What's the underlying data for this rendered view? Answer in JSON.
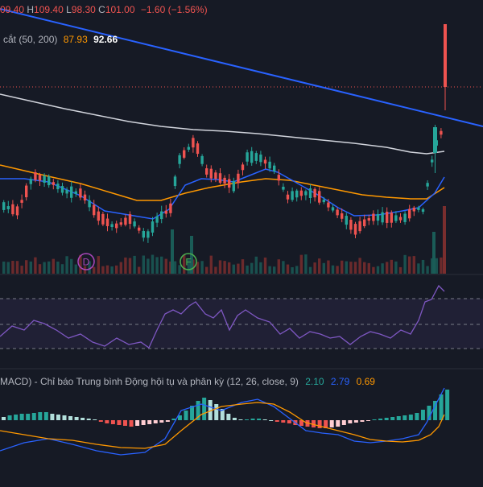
{
  "ohlc_bar": {
    "open_fragment": "09.40",
    "high_label": "H",
    "high": "109.40",
    "low_label": "L",
    "low": "98.30",
    "close_label": "C",
    "close": "101.00",
    "change": "−1.60 (−1.56%)"
  },
  "ma_legend": {
    "text": "cắt (50, 200)",
    "value1": "87.93",
    "value2": "92.66"
  },
  "markers": {
    "d": "D",
    "f": "F"
  },
  "macd_legend": {
    "text": "MACD) - Chỉ báo Trung bình Động hội tụ và phân kỳ (12, 26, close, 9)",
    "hist": "2.10",
    "macd": "2.79",
    "signal": "0.69"
  },
  "colors": {
    "background": "#161a25",
    "up": "#26a69a",
    "down": "#ef5350",
    "ma_fast": "#2962ff",
    "ma_slow": "#ff9800",
    "ma_200": "#d1d4dc",
    "trendline": "#2962ff",
    "rsi": "#7e57c2",
    "macd_line": "#2962ff",
    "signal_line": "#ff9800",
    "hist_up_strong": "#26a69a",
    "hist_up_weak": "#b2dfdb",
    "hist_down_strong": "#ef5350",
    "hist_down_weak": "#ffcdd2",
    "marker_green": "#4caf50",
    "marker_purple": "#ab47bc"
  }
}
